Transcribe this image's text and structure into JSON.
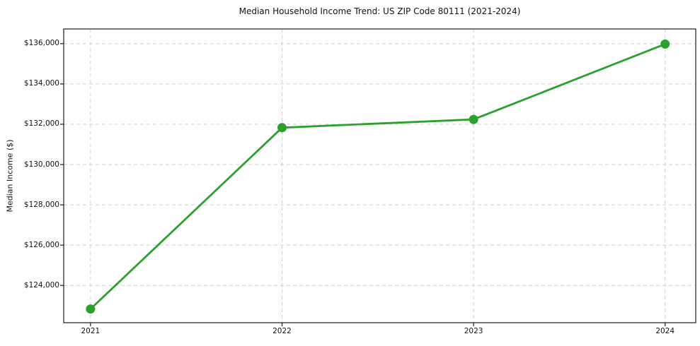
{
  "figure": {
    "background": "#ffffff"
  },
  "chart_data": {
    "type": "line",
    "title": "Median Household Income Trend: US ZIP Code 80111 (2021-2024)",
    "xlabel": "",
    "ylabel": "Median Income ($)",
    "x": [
      2021,
      2022,
      2023,
      2024
    ],
    "x_tick_labels": [
      "2021",
      "2022",
      "2023",
      "2024"
    ],
    "series": [
      {
        "name": "Median Household Income",
        "values": [
          122830,
          131830,
          132240,
          135980
        ],
        "color": "#2ca02c",
        "marker": "circle",
        "line_width": 2.8,
        "marker_radius": 6.5
      }
    ],
    "y_ticks": [
      124000,
      126000,
      128000,
      130000,
      132000,
      134000,
      136000
    ],
    "y_tick_labels": [
      "$124,000",
      "$126,000",
      "$128,000",
      "$130,000",
      "$132,000",
      "$134,000",
      "$136,000"
    ],
    "xlim": [
      2020.86,
      2024.16
    ],
    "ylim": [
      122150,
      136730
    ],
    "grid": "both",
    "grid_style": "dashed",
    "grid_color": "#cfcfcf",
    "legend": "none"
  }
}
